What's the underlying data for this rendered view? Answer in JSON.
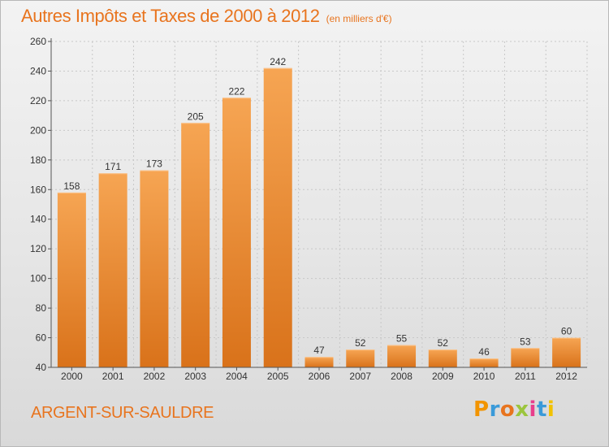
{
  "header": {
    "title": "Autres Impôts et Taxes de 2000 à 2012",
    "unit": "(en milliers d'€)"
  },
  "footer": {
    "place": "ARGENT-SUR-SAULDRE",
    "brand": "Proxiti",
    "brand_colors": [
      "#f29400",
      "#3a9ad9",
      "#e8741e",
      "#9bc53d",
      "#e83e8c",
      "#3a9ad9",
      "#f2c200"
    ]
  },
  "colors": {
    "accent": "#e8741e",
    "bar_light": "#f6a553",
    "bar_dark": "#d9721a"
  },
  "chart_data": {
    "type": "bar",
    "title": "Autres Impôts et Taxes de 2000 à 2012",
    "unit": "(en milliers d'€)",
    "categories": [
      "2000",
      "2001",
      "2002",
      "2003",
      "2004",
      "2005",
      "2006",
      "2007",
      "2008",
      "2009",
      "2010",
      "2011",
      "2012"
    ],
    "values": [
      158,
      171,
      173,
      205,
      222,
      242,
      47,
      52,
      55,
      52,
      46,
      53,
      60
    ],
    "ylim": [
      40,
      260
    ],
    "yticks": [
      40,
      60,
      80,
      100,
      120,
      140,
      160,
      180,
      200,
      220,
      240,
      260
    ],
    "grid": true
  }
}
